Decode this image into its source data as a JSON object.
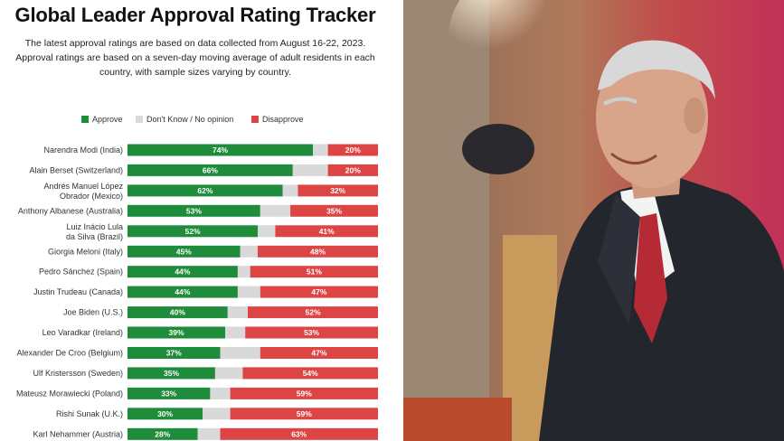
{
  "chart_data": {
    "type": "bar",
    "stacked": true,
    "orientation": "horizontal",
    "title": "Global Leader Approval Rating Tracker",
    "subtitle_lines": [
      "The latest approval ratings are based on data collected from August 16-22, 2023.",
      "Approval ratings are based on a seven-day moving average of adult residents in each",
      "country, with sample sizes varying by country."
    ],
    "legend": [
      {
        "name": "Approve",
        "color": "#1e8c3a"
      },
      {
        "name": "Don't Know / No opinion",
        "color": "#d9d9d9"
      },
      {
        "name": "Disapprove",
        "color": "#dd4545"
      }
    ],
    "legend_position": "top",
    "xlim": [
      0,
      100
    ],
    "grid": false,
    "categories": [
      "Narendra Modi (India)",
      "Alain Berset (Switzerland)",
      "Andrés Manuel López Obrador (Mexico)",
      "Anthony Albanese (Australia)",
      "Luiz Inácio Lula da Silva (Brazil)",
      "Giorgia Meloni (Italy)",
      "Pedro Sánchez (Spain)",
      "Justin Trudeau (Canada)",
      "Joe Biden (U.S.)",
      "Leo Varadkar (Ireland)",
      "Alexander De Croo (Belgium)",
      "Ulf Kristersson (Sweden)",
      "Mateusz Morawiecki (Poland)",
      "Rishi Sunak (U.K.)",
      "Karl Nehammer (Austria)"
    ],
    "series": [
      {
        "name": "Approve",
        "values": [
          74,
          66,
          62,
          53,
          52,
          45,
          44,
          44,
          40,
          39,
          37,
          35,
          33,
          30,
          28
        ]
      },
      {
        "name": "Don't Know / No opinion",
        "values": [
          6,
          14,
          6,
          12,
          7,
          7,
          5,
          9,
          8,
          8,
          16,
          11,
          8,
          11,
          9
        ]
      },
      {
        "name": "Disapprove",
        "values": [
          20,
          20,
          32,
          35,
          41,
          48,
          51,
          47,
          52,
          53,
          47,
          54,
          59,
          59,
          63
        ]
      }
    ],
    "approve_labels": [
      "74%",
      "66%",
      "62%",
      "53%",
      "52%",
      "45%",
      "44%",
      "44%",
      "40%",
      "39%",
      "37%",
      "35%",
      "33%",
      "30%",
      "28%"
    ],
    "disapprove_labels": [
      "20%",
      "20%",
      "32%",
      "35%",
      "41%",
      "48%",
      "51%",
      "47%",
      "52%",
      "53%",
      "47%",
      "54%",
      "59%",
      "59%",
      "63%"
    ]
  },
  "photo": {
    "colors": {
      "background_warm": "#c8583a",
      "curtain": "#b8324e",
      "suit": "#23262d",
      "shirt": "#f3f3f3",
      "tie": "#b52a35",
      "skin": "#d9a58a",
      "hair": "#d8d8d8"
    }
  }
}
